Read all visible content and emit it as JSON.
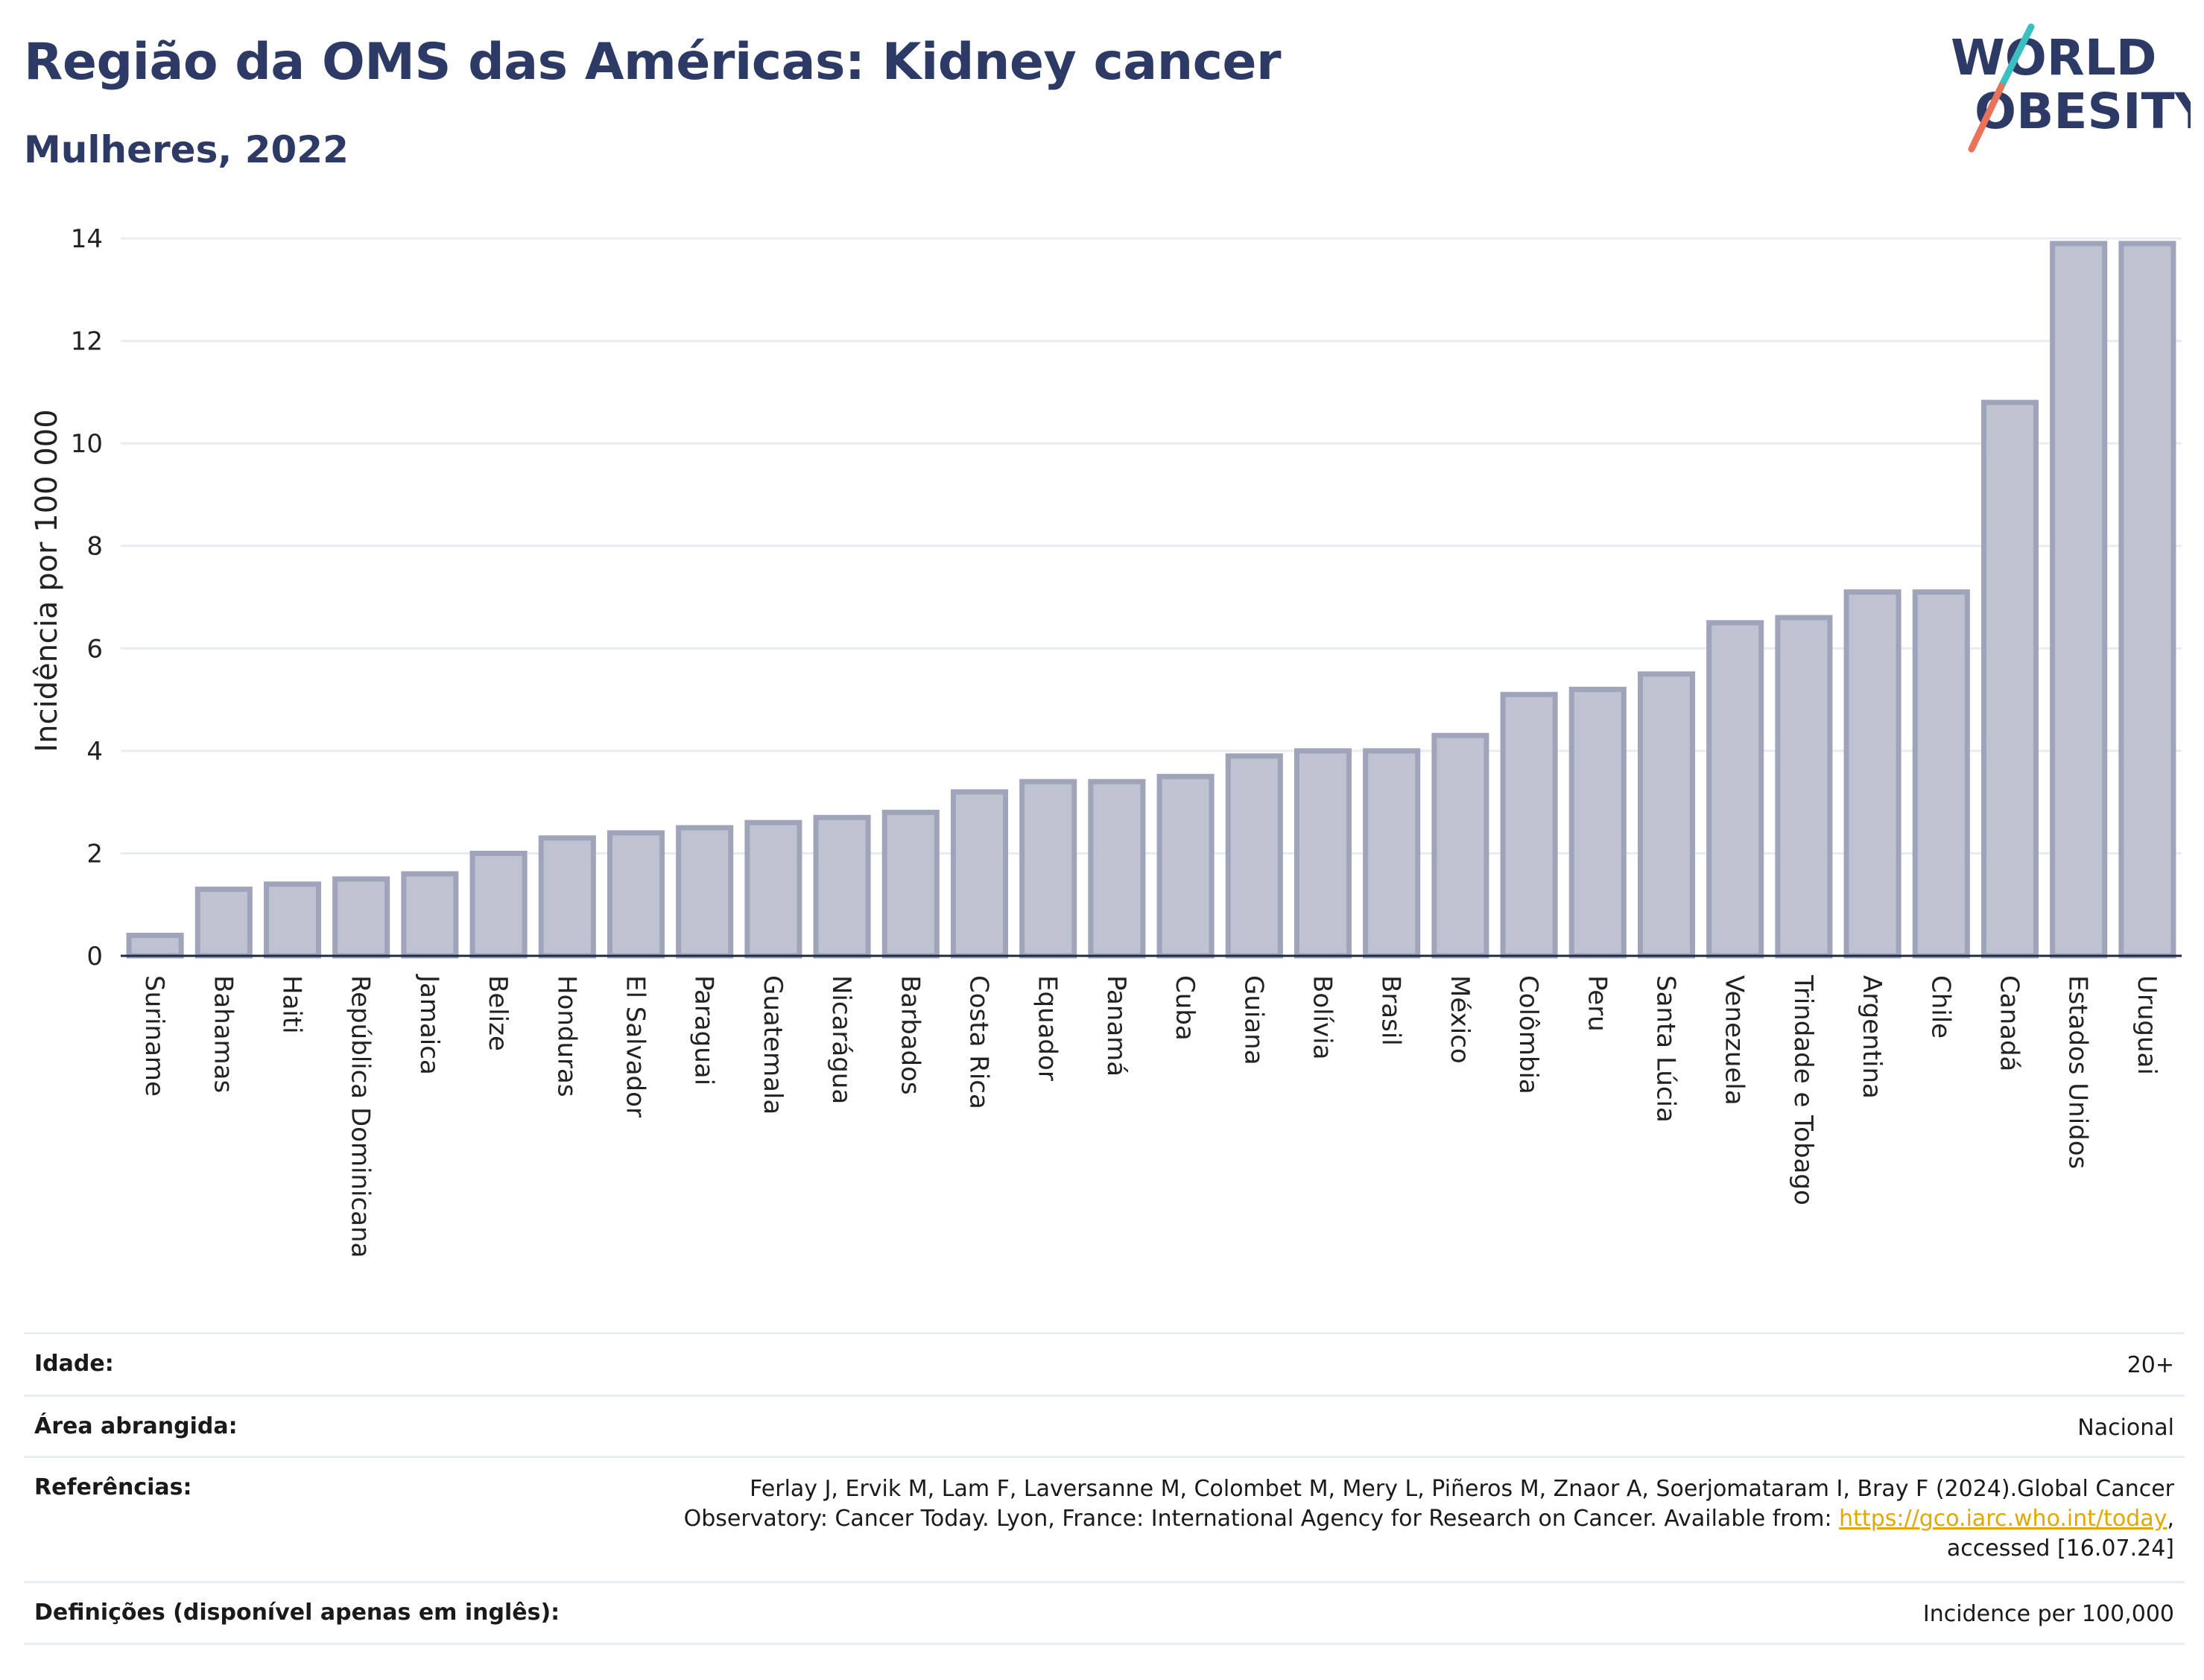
{
  "header": {
    "title": "Região da OMS das Américas: Kidney cancer",
    "subtitle": "Mulheres, 2022"
  },
  "logo": {
    "line1": "WORLD",
    "line2": "OBESITY",
    "colors": {
      "text": "#2d3a66",
      "slash_top": "#3bbfc0",
      "slash_bottom": "#e8735a"
    }
  },
  "chart_data": {
    "type": "bar",
    "categories": [
      "Suriname",
      "Bahamas",
      "Haiti",
      "República Dominicana",
      "Jamaica",
      "Belize",
      "Honduras",
      "El Salvador",
      "Paraguai",
      "Guatemala",
      "Nicarágua",
      "Barbados",
      "Costa Rica",
      "Equador",
      "Panamá",
      "Cuba",
      "Guiana",
      "Bolívia",
      "Brasil",
      "México",
      "Colômbia",
      "Peru",
      "Santa Lúcia",
      "Venezuela",
      "Trindade e Tobago",
      "Argentina",
      "Chile",
      "Canadá",
      "Estados Unidos",
      "Uruguai"
    ],
    "values": [
      0.4,
      1.3,
      1.4,
      1.5,
      1.6,
      2.0,
      2.3,
      2.4,
      2.5,
      2.6,
      2.7,
      2.8,
      3.2,
      3.4,
      3.4,
      3.5,
      3.9,
      4.0,
      4.0,
      4.3,
      5.1,
      5.2,
      5.5,
      6.5,
      6.6,
      7.1,
      7.1,
      10.8,
      13.9,
      13.9
    ],
    "ylabel": "Incidência por 100 000",
    "xlabel": "",
    "ylim": [
      0,
      14
    ],
    "yticks": [
      0,
      2,
      4,
      6,
      8,
      10,
      12,
      14
    ],
    "grid": true,
    "colors": {
      "bar_fill": "#bfc2d1",
      "bar_stroke": "#9fa4bb",
      "grid": "#e8ecf2",
      "axis": "#1f2a44"
    }
  },
  "meta": {
    "age": {
      "label": "Idade:",
      "value": "20+"
    },
    "area": {
      "label": "Área abrangida:",
      "value": "Nacional"
    },
    "refs": {
      "label": "Referências:",
      "text_before": "Ferlay J, Ervik M, Lam F, Laversanne M, Colombet M, Mery L, Piñeros M, Znaor A, Soerjomataram I, Bray F (2024).Global Cancer Observatory: Cancer Today. Lyon, France: International Agency for Research on Cancer. Available from: ",
      "link": "https://gco.iarc.who.int/today",
      "text_after": ", accessed [16.07.24]"
    },
    "definitions": {
      "label": "Definições (disponível apenas em inglês):",
      "value": "Incidence per 100,000"
    }
  }
}
